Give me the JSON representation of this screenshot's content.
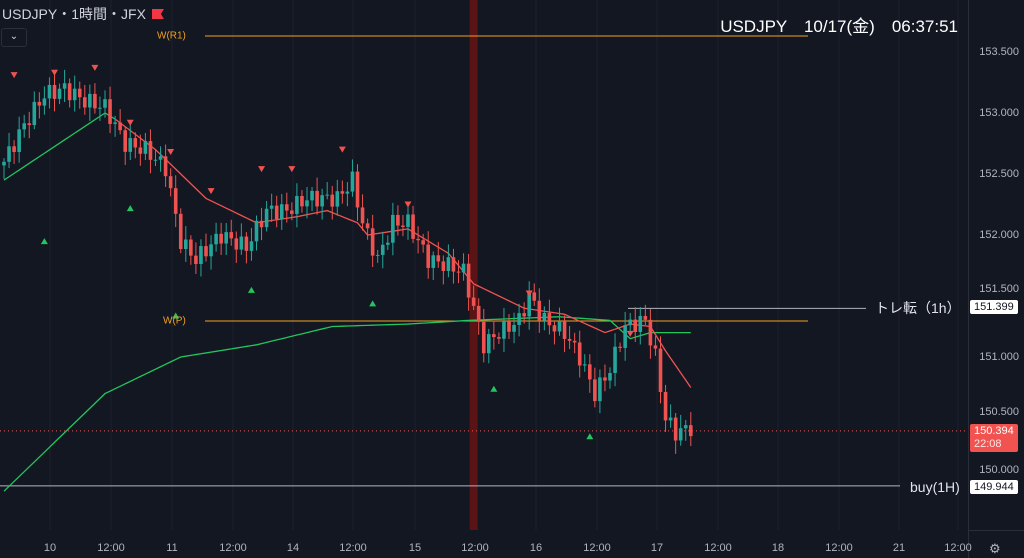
{
  "header": {
    "title": "USDJPY・1時間・JFX",
    "clock": "USDJPY　10/17(金)　06:37:51",
    "collapse_icon": "chevron-down-icon"
  },
  "price_axis": {
    "ticks": [
      "153.500",
      "153.000",
      "152.500",
      "152.000",
      "151.500",
      "151.000",
      "150.500",
      "150.000"
    ],
    "tick_values": [
      153.5,
      153.0,
      152.5,
      152.0,
      151.5,
      151.0,
      150.5,
      150.0
    ]
  },
  "time_axis": [
    "10",
    "12:00",
    "11",
    "12:00",
    "14",
    "12:00",
    "15",
    "12:00",
    "16",
    "12:00",
    "17",
    "12:00",
    "18",
    "12:00",
    "21",
    "12:00"
  ],
  "levels": {
    "r1": {
      "label": "W(R1)",
      "price": 153.631,
      "color": "#f0a020"
    },
    "p": {
      "label": "W(P)",
      "price": 151.295,
      "color": "#f0a020"
    },
    "trend": {
      "label": "トレ転（1h）",
      "price": 151.399,
      "tag": "151.399"
    },
    "buy": {
      "label": "buy(1H)",
      "price": 149.944,
      "tag": "149.944"
    },
    "current": {
      "price": 150.394,
      "tag": "150.394",
      "countdown": "22:08",
      "color": "#f05350"
    }
  },
  "colors": {
    "up": "#26a69a",
    "down": "#ef5350",
    "ma_up": "#22c55e",
    "ma_down": "#f05350",
    "band": "#5a1416"
  },
  "chart_data": {
    "type": "candlestick",
    "close_keyframes": [
      [
        0,
        152.6
      ],
      [
        4,
        152.9
      ],
      [
        8,
        153.15
      ],
      [
        12,
        153.2
      ],
      [
        16,
        153.1
      ],
      [
        20,
        153.05
      ],
      [
        24,
        152.75
      ],
      [
        28,
        152.7
      ],
      [
        32,
        152.55
      ],
      [
        35,
        151.95
      ],
      [
        38,
        151.8
      ],
      [
        43,
        152.0
      ],
      [
        48,
        151.9
      ],
      [
        52,
        152.2
      ],
      [
        56,
        152.2
      ],
      [
        60,
        152.3
      ],
      [
        66,
        152.3
      ],
      [
        69,
        152.45
      ],
      [
        71,
        152.1
      ],
      [
        74,
        151.8
      ],
      [
        77,
        152.1
      ],
      [
        80,
        152.1
      ],
      [
        84,
        151.8
      ],
      [
        88,
        151.75
      ],
      [
        91,
        151.7
      ],
      [
        93,
        151.4
      ],
      [
        95,
        151.1
      ],
      [
        98,
        151.2
      ],
      [
        102,
        151.3
      ],
      [
        104,
        151.5
      ],
      [
        107,
        151.3
      ],
      [
        111,
        151.2
      ],
      [
        114,
        151.0
      ],
      [
        117,
        150.7
      ],
      [
        120,
        150.9
      ],
      [
        123,
        151.25
      ],
      [
        127,
        151.3
      ],
      [
        129,
        151.0
      ],
      [
        131,
        150.5
      ],
      [
        133,
        150.38
      ],
      [
        136,
        150.42
      ]
    ],
    "ma_fast": [
      [
        0,
        152.45
      ],
      [
        20,
        153.0
      ],
      [
        22,
        152.95
      ],
      [
        30,
        152.7
      ],
      [
        40,
        152.3
      ],
      [
        50,
        152.1
      ],
      [
        58,
        152.15
      ],
      [
        64,
        152.2
      ],
      [
        70,
        152.1
      ],
      [
        72,
        152.0
      ],
      [
        80,
        152.05
      ],
      [
        88,
        151.85
      ],
      [
        93,
        151.6
      ],
      [
        103,
        151.4
      ],
      [
        111,
        151.35
      ],
      [
        119,
        151.2
      ],
      [
        124,
        151.27
      ],
      [
        128,
        151.25
      ],
      [
        131,
        151.05
      ],
      [
        136,
        150.75
      ]
    ],
    "ma_slow": [
      [
        0,
        149.9
      ],
      [
        10,
        150.3
      ],
      [
        20,
        150.7
      ],
      [
        35,
        151.0
      ],
      [
        50,
        151.1
      ],
      [
        65,
        151.25
      ],
      [
        80,
        151.27
      ],
      [
        92,
        151.3
      ],
      [
        110,
        151.33
      ],
      [
        120,
        151.3
      ],
      [
        124,
        151.15
      ],
      [
        128,
        151.2
      ],
      [
        136,
        151.2
      ]
    ],
    "ma_slow_tail": [
      [
        120,
        151.35
      ],
      [
        128,
        151.3
      ],
      [
        136,
        151.2
      ]
    ],
    "sell_signals": [
      [
        2,
        153.31
      ],
      [
        10,
        153.33
      ],
      [
        18,
        153.37
      ],
      [
        25,
        152.92
      ],
      [
        33,
        152.68
      ],
      [
        41,
        152.36
      ],
      [
        51,
        152.54
      ],
      [
        57,
        152.54
      ],
      [
        67,
        152.7
      ],
      [
        80,
        152.25
      ],
      [
        104,
        151.52
      ],
      [
        124,
        151.19
      ]
    ],
    "buy_signals": [
      [
        8,
        151.95
      ],
      [
        25,
        152.22
      ],
      [
        34,
        151.34
      ],
      [
        49,
        151.55
      ],
      [
        73,
        151.44
      ],
      [
        97,
        150.74
      ],
      [
        116,
        150.35
      ]
    ],
    "band_candle": 93
  }
}
